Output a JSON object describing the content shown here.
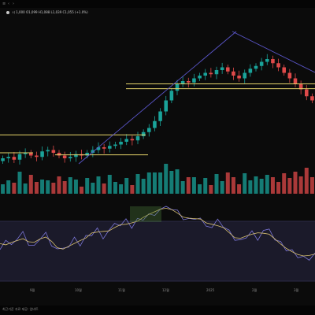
{
  "toolbar": {
    "menu_glyph": "≡",
    "back_glyph": "‹",
    "forward_glyph": "›"
  },
  "legend": {
    "text": "시 1,000 O1,099 H1,088 L1,039 C1,055 (+1.0%)"
  },
  "x_axis_labels": [
    "9월",
    "10월",
    "11월",
    "12월",
    "2025",
    "2월",
    "3월"
  ],
  "footer": {
    "text": "최근기준 자료 제공: 업비트"
  },
  "colors": {
    "background": "#0b0b0b",
    "rsi_panel": "#1b1a2a",
    "up_candle": "#1aa39a",
    "down_candle": "#e04a4a",
    "support_resistance": "#e6d46a",
    "trendline": "#5a55c8",
    "rsi_line": "#7b76d8",
    "rsi_signal": "#d8c070"
  },
  "chart_data": {
    "type": "line",
    "title": "",
    "xlabel": "",
    "ylabel": "",
    "price_range": [
      0.0,
      1.0
    ],
    "horizontal_levels": [
      0.62,
      0.585,
      0.25,
      0.12,
      0.105
    ],
    "series": [
      {
        "values": [
          0.08,
          0.09,
          0.07,
          0.11,
          0.12,
          0.1,
          0.09,
          0.13,
          0.14,
          0.12,
          0.1,
          0.08,
          0.09,
          0.11,
          0.1,
          0.12,
          0.14,
          0.16,
          0.15,
          0.17,
          0.18,
          0.2,
          0.22,
          0.21,
          0.24,
          0.27,
          0.3,
          0.35,
          0.42,
          0.5,
          0.57,
          0.62,
          0.64,
          0.63,
          0.66,
          0.68,
          0.7,
          0.69,
          0.72,
          0.74,
          0.71,
          0.68,
          0.66,
          0.7,
          0.73,
          0.75,
          0.78,
          0.8,
          0.77,
          0.74,
          0.7,
          0.66,
          0.62,
          0.58,
          0.53,
          0.5
        ]
      }
    ],
    "rsi_series": [
      {
        "values": [
          0.45,
          0.52,
          0.4,
          0.55,
          0.6,
          0.48,
          0.42,
          0.58,
          0.62,
          0.5,
          0.4,
          0.35,
          0.44,
          0.52,
          0.47,
          0.56,
          0.63,
          0.68,
          0.6,
          0.66,
          0.7,
          0.74,
          0.78,
          0.72,
          0.8,
          0.85,
          0.88,
          0.93,
          0.96,
          0.99,
          0.97,
          0.9,
          0.84,
          0.8,
          0.86,
          0.82,
          0.78,
          0.7,
          0.76,
          0.72,
          0.62,
          0.55,
          0.5,
          0.6,
          0.64,
          0.58,
          0.66,
          0.62,
          0.54,
          0.46,
          0.4,
          0.36,
          0.32,
          0.28,
          0.3,
          0.34
        ]
      }
    ]
  }
}
